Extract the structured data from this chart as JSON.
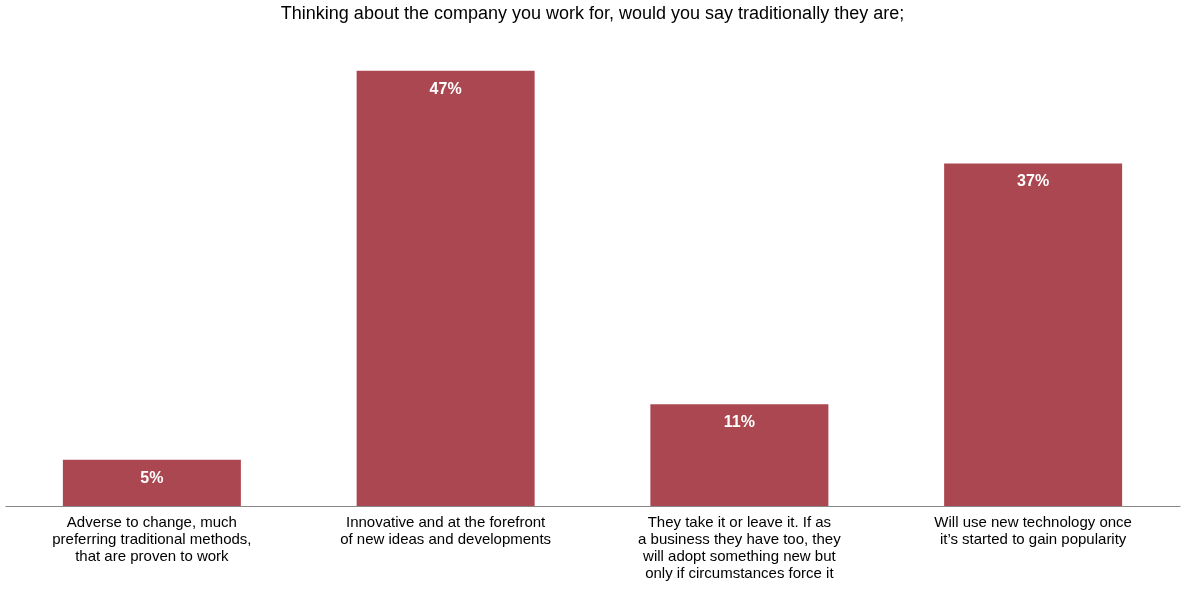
{
  "chart_data": {
    "type": "bar",
    "title": "Thinking about the company you work for, would you say traditionally they are;",
    "categories": [
      "Adverse to change, much preferring traditional methods, that are proven to work",
      "Innovative and at the forefront of new ideas and developments",
      "They take it or leave it.  If as a business they have too, they will adopt something new but only if circumstances force it",
      "Will use new technology once it’s started to gain popularity"
    ],
    "values": [
      5,
      47,
      11,
      37
    ],
    "value_labels": [
      "5%",
      "47%",
      "11%",
      "37%"
    ],
    "color": "#ab4751"
  }
}
